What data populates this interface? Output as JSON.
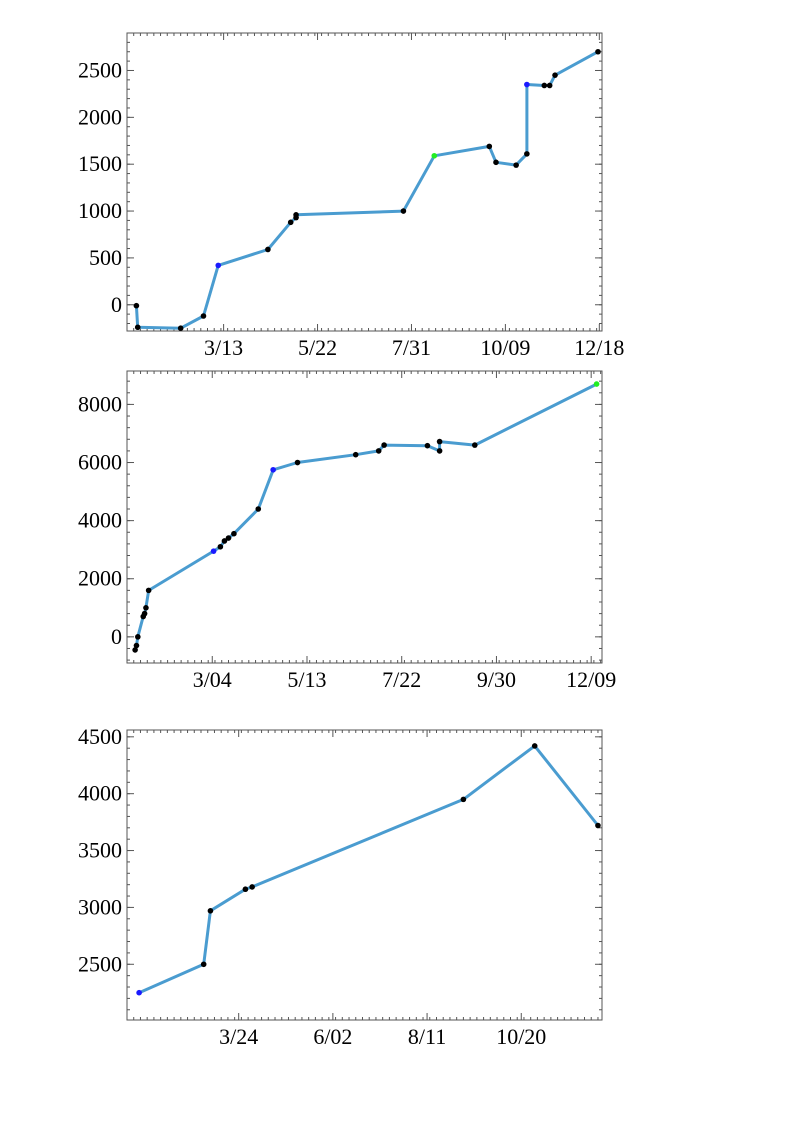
{
  "colors": {
    "line": "#4a9cd0",
    "point": "#000000",
    "highlight_blue": "#1a1aff",
    "highlight_green": "#22ee22"
  },
  "chart_data": [
    {
      "type": "line",
      "title": "",
      "xlabel": "",
      "ylabel": "",
      "grid": false,
      "x_axis": "day of year",
      "xlim": [
        0,
        354
      ],
      "ylim": [
        -280,
        2900
      ],
      "x_ticks": [
        {
          "value": 72,
          "label": "3/13"
        },
        {
          "value": 142,
          "label": "5/22"
        },
        {
          "value": 212,
          "label": "7/31"
        },
        {
          "value": 282,
          "label": "10/09"
        },
        {
          "value": 352,
          "label": "12/18"
        }
      ],
      "y_ticks": [
        {
          "value": 0,
          "label": "0"
        },
        {
          "value": 500,
          "label": "500"
        },
        {
          "value": 1000,
          "label": "1000"
        },
        {
          "value": 1500,
          "label": "1500"
        },
        {
          "value": 2000,
          "label": "2000"
        },
        {
          "value": 2500,
          "label": "2500"
        }
      ],
      "series": [
        {
          "points": [
            {
              "x": 7,
              "y": -10
            },
            {
              "x": 8,
              "y": -240
            },
            {
              "x": 40,
              "y": -250
            },
            {
              "x": 57,
              "y": -120
            },
            {
              "x": 68,
              "y": 420,
              "color": "highlight_blue"
            },
            {
              "x": 105,
              "y": 590
            },
            {
              "x": 122,
              "y": 880
            },
            {
              "x": 126,
              "y": 930
            },
            {
              "x": 126,
              "y": 960
            },
            {
              "x": 206,
              "y": 1000
            },
            {
              "x": 229,
              "y": 1590,
              "color": "highlight_green"
            },
            {
              "x": 270,
              "y": 1690
            },
            {
              "x": 275,
              "y": 1520
            },
            {
              "x": 290,
              "y": 1490
            },
            {
              "x": 298,
              "y": 1610
            },
            {
              "x": 298,
              "y": 2350,
              "color": "highlight_blue"
            },
            {
              "x": 311,
              "y": 2340
            },
            {
              "x": 315,
              "y": 2340
            },
            {
              "x": 319,
              "y": 2450
            },
            {
              "x": 351,
              "y": 2700
            }
          ]
        }
      ]
    },
    {
      "type": "line",
      "title": "",
      "xlabel": "",
      "ylabel": "",
      "grid": false,
      "x_axis": "day of year",
      "xlim": [
        0,
        351
      ],
      "ylim": [
        -900,
        9150
      ],
      "x_ticks": [
        {
          "value": 63,
          "label": "3/04"
        },
        {
          "value": 133,
          "label": "5/13"
        },
        {
          "value": 203,
          "label": "7/22"
        },
        {
          "value": 273,
          "label": "9/30"
        },
        {
          "value": 343,
          "label": "12/09"
        }
      ],
      "y_ticks": [
        {
          "value": 0,
          "label": "0"
        },
        {
          "value": 2000,
          "label": "2000"
        },
        {
          "value": 4000,
          "label": "4000"
        },
        {
          "value": 6000,
          "label": "6000"
        },
        {
          "value": 8000,
          "label": "8000"
        }
      ],
      "series": [
        {
          "points": [
            {
              "x": 6,
              "y": -450
            },
            {
              "x": 7,
              "y": -300
            },
            {
              "x": 8,
              "y": 0
            },
            {
              "x": 12,
              "y": 700
            },
            {
              "x": 13,
              "y": 800
            },
            {
              "x": 14,
              "y": 1000
            },
            {
              "x": 16,
              "y": 1600
            },
            {
              "x": 64,
              "y": 2950,
              "color": "highlight_blue"
            },
            {
              "x": 69,
              "y": 3100
            },
            {
              "x": 72,
              "y": 3300
            },
            {
              "x": 75,
              "y": 3400
            },
            {
              "x": 79,
              "y": 3550
            },
            {
              "x": 97,
              "y": 4400
            },
            {
              "x": 108,
              "y": 5750,
              "color": "highlight_blue"
            },
            {
              "x": 126,
              "y": 6000
            },
            {
              "x": 169,
              "y": 6270
            },
            {
              "x": 186,
              "y": 6400
            },
            {
              "x": 190,
              "y": 6600
            },
            {
              "x": 222,
              "y": 6580
            },
            {
              "x": 231,
              "y": 6400
            },
            {
              "x": 231,
              "y": 6720
            },
            {
              "x": 257,
              "y": 6600
            },
            {
              "x": 347,
              "y": 8700,
              "color": "highlight_green"
            }
          ]
        }
      ]
    },
    {
      "type": "line",
      "title": "",
      "xlabel": "",
      "ylabel": "",
      "grid": false,
      "x_axis": "day of year",
      "xlim": [
        0,
        353
      ],
      "ylim": [
        2010,
        4560
      ],
      "x_ticks": [
        {
          "value": 83,
          "label": "3/24"
        },
        {
          "value": 153,
          "label": "6/02"
        },
        {
          "value": 223,
          "label": "8/11"
        },
        {
          "value": 293,
          "label": "10/20"
        }
      ],
      "y_ticks": [
        {
          "value": 2500,
          "label": "2500"
        },
        {
          "value": 3000,
          "label": "3000"
        },
        {
          "value": 3500,
          "label": "3500"
        },
        {
          "value": 4000,
          "label": "4000"
        },
        {
          "value": 4500,
          "label": "4500"
        }
      ],
      "series": [
        {
          "points": [
            {
              "x": 9,
              "y": 2250,
              "color": "highlight_blue"
            },
            {
              "x": 57,
              "y": 2500
            },
            {
              "x": 62,
              "y": 2970
            },
            {
              "x": 88,
              "y": 3160
            },
            {
              "x": 93,
              "y": 3180
            },
            {
              "x": 250,
              "y": 3950
            },
            {
              "x": 303,
              "y": 4420
            },
            {
              "x": 350,
              "y": 3720
            }
          ]
        }
      ]
    }
  ]
}
